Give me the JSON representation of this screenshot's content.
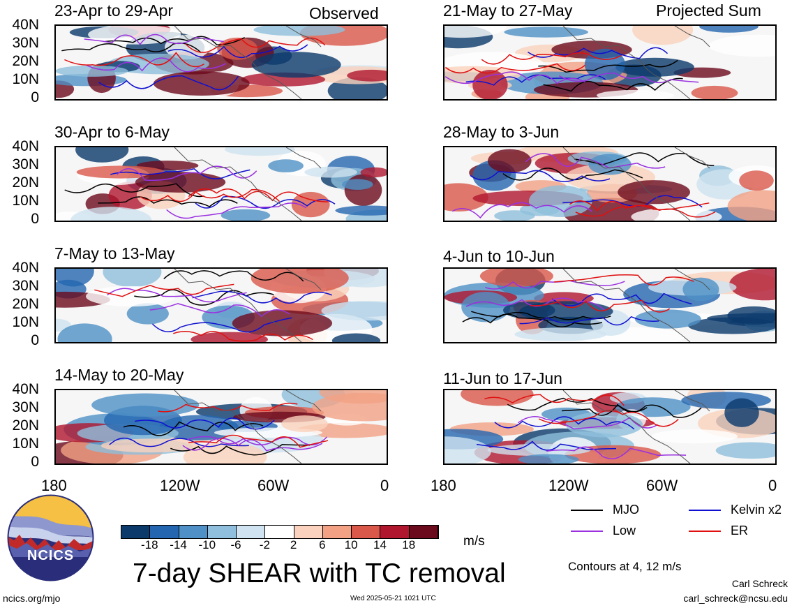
{
  "headers": {
    "left": "Observed",
    "right": "Projected Sum"
  },
  "panels": [
    {
      "title": "23-Apr to 29-Apr"
    },
    {
      "title": "21-May to 27-May"
    },
    {
      "title": "30-Apr to 6-May"
    },
    {
      "title": "28-May to 3-Jun"
    },
    {
      "title": "7-May to 13-May"
    },
    {
      "title": "4-Jun to 10-Jun"
    },
    {
      "title": "14-May to 20-May"
    },
    {
      "title": "11-Jun to 17-Jun"
    }
  ],
  "y_ticks": [
    "40N",
    "30N",
    "20N",
    "10N",
    "0"
  ],
  "x_ticks": [
    "180",
    "120W",
    "60W",
    "0"
  ],
  "legend": {
    "mjo": "MJO",
    "kelvin": "Kelvin x2",
    "low": "Low",
    "er": "ER",
    "colors": {
      "mjo": "#000000",
      "kelvin": "#1010d0",
      "low": "#9a30e0",
      "er": "#e01010"
    }
  },
  "colorbar": {
    "labels": [
      "-18",
      "-14",
      "-10",
      "-6",
      "-2",
      "2",
      "6",
      "10",
      "14",
      "18"
    ],
    "colors": [
      "#0b3a6b",
      "#2467b0",
      "#4f91c6",
      "#8fbfdc",
      "#cfe3f0",
      "#ffffff",
      "#fad2bd",
      "#f2a185",
      "#d9584a",
      "#b0172e",
      "#6b0a1d"
    ],
    "unit": "m/s"
  },
  "title": "7-day SHEAR with TC removal",
  "contours_note": "Contours at 4, 12 m/s",
  "logo_text": "NCICS",
  "footer": {
    "left": "ncics.org/mjo",
    "center": "Wed 2025-05-21 1021 UTC",
    "author": "Carl Schreck",
    "email": "carl_schreck@ncsu.edu"
  }
}
